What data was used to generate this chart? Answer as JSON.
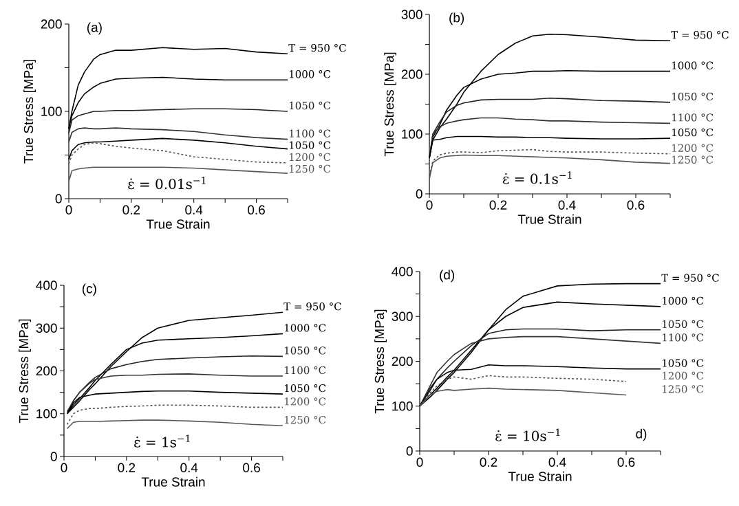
{
  "chart_data": [
    {
      "type": "line",
      "title": "(a)",
      "xlabel": "True Strain",
      "ylabel": "True Stress [MPa]",
      "x": [
        0,
        0.01,
        0.03,
        0.05,
        0.08,
        0.1,
        0.15,
        0.2,
        0.3,
        0.4,
        0.5,
        0.6,
        0.7
      ],
      "series": [
        {
          "name": "T = 950 °C",
          "color": "#000000",
          "line_style": "solid",
          "values": [
            80,
            100,
            130,
            145,
            160,
            165,
            170,
            170,
            173,
            171,
            172,
            168,
            166
          ]
        },
        {
          "name": "1000 °C",
          "color": "#000000",
          "line_style": "solid",
          "values": [
            80,
            95,
            110,
            120,
            128,
            132,
            137,
            138,
            139,
            137,
            136,
            136,
            136
          ]
        },
        {
          "name": "1050 °C",
          "color": "#222222",
          "line_style": "solid",
          "values": [
            75,
            90,
            95,
            97,
            100,
            100,
            101,
            101,
            102,
            103,
            103,
            102,
            100
          ]
        },
        {
          "name": "1100 °C",
          "color": "#333333",
          "line_style": "solid",
          "values": [
            65,
            76,
            80,
            81,
            80,
            80,
            81,
            80,
            79,
            77,
            73,
            70,
            68
          ]
        },
        {
          "name": "1050 °C",
          "color": "#000000",
          "line_style": "solid",
          "values": [
            45,
            55,
            62,
            64,
            65,
            65,
            66,
            67,
            69,
            67,
            64,
            60,
            57
          ]
        },
        {
          "name": "1200 °C",
          "color": "#555555",
          "line_style": "dashed",
          "values": [
            40,
            50,
            57,
            62,
            64,
            63,
            60,
            58,
            55,
            48,
            45,
            42,
            41
          ]
        },
        {
          "name": "1250 °C",
          "color": "#555555",
          "line_style": "solid",
          "values": [
            20,
            32,
            34,
            35,
            36,
            36,
            36,
            36,
            36,
            35,
            33,
            31,
            29
          ]
        }
      ],
      "xlim": [
        0,
        0.7
      ],
      "ylim": [
        0,
        200
      ],
      "xticks": [
        0,
        {
          "value": 0.1,
          "label": null
        },
        0.2,
        {
          "value": 0.3,
          "label": null
        },
        0.4,
        {
          "value": 0.5,
          "label": null
        },
        0.6,
        {
          "value": 0.7,
          "label": null
        }
      ],
      "yticks": [
        0,
        {
          "value": 50,
          "label": null
        },
        100,
        {
          "value": 150,
          "label": null
        },
        200
      ],
      "annotations": [
        "ε̇ = 0.01s$^{−1}$"
      ]
    },
    {
      "type": "line",
      "title": "(b)",
      "xlabel": "True Strain",
      "ylabel": "True Stress [MPa]",
      "x": [
        0,
        0.01,
        0.03,
        0.05,
        0.08,
        0.1,
        0.15,
        0.2,
        0.25,
        0.3,
        0.35,
        0.4,
        0.5,
        0.6,
        0.7
      ],
      "series": [
        {
          "name": "T = 950 °C",
          "color": "#000000",
          "line_style": "solid",
          "values": [
            60,
            90,
            110,
            125,
            150,
            170,
            205,
            233,
            252,
            264,
            267,
            266,
            262,
            257,
            256
          ]
        },
        {
          "name": "1000 °C",
          "color": "#000000",
          "line_style": "solid",
          "values": [
            60,
            95,
            115,
            140,
            165,
            178,
            192,
            200,
            202,
            205,
            205,
            206,
            205,
            205,
            205
          ]
        },
        {
          "name": "1050 °C",
          "color": "#222222",
          "line_style": "solid",
          "values": [
            60,
            100,
            120,
            137,
            148,
            152,
            157,
            158,
            158,
            158,
            160,
            159,
            156,
            155,
            153
          ]
        },
        {
          "name": "1100 °C",
          "color": "#333333",
          "line_style": "solid",
          "values": [
            60,
            100,
            112,
            118,
            122,
            124,
            127,
            127,
            125,
            124,
            122,
            122,
            120,
            119,
            118
          ]
        },
        {
          "name": "1050 °C",
          "color": "#000000",
          "line_style": "solid",
          "values": [
            60,
            90,
            91,
            94,
            96,
            96,
            96,
            95,
            95,
            94,
            94,
            93,
            92,
            92,
            93
          ]
        },
        {
          "name": "1200 °C",
          "color": "#555555",
          "line_style": "dashed",
          "values": [
            30,
            55,
            65,
            68,
            70,
            70,
            69,
            72,
            73,
            74,
            71,
            70,
            70,
            68,
            67
          ]
        },
        {
          "name": "1250 °C",
          "color": "#555555",
          "line_style": "solid",
          "values": [
            25,
            52,
            60,
            63,
            64,
            65,
            64,
            64,
            63,
            62,
            61,
            60,
            57,
            53,
            51
          ]
        }
      ],
      "xlim": [
        0,
        0.7
      ],
      "ylim": [
        0,
        300
      ],
      "xticks": [
        0,
        {
          "value": 0.1,
          "label": null
        },
        0.2,
        {
          "value": 0.3,
          "label": null
        },
        0.4,
        {
          "value": 0.5,
          "label": null
        },
        0.6,
        {
          "value": 0.7,
          "label": null
        }
      ],
      "yticks": [
        0,
        {
          "value": 50,
          "label": null
        },
        100,
        {
          "value": 150,
          "label": null
        },
        200,
        {
          "value": 250,
          "label": null
        },
        300
      ],
      "annotations": [
        "ε̇ = 0.1s$^{−1}$"
      ]
    },
    {
      "type": "line",
      "title": "(c)",
      "xlabel": "True Strain",
      "ylabel": "True Stress [MPa]",
      "x": [
        0.01,
        0.03,
        0.05,
        0.08,
        0.1,
        0.15,
        0.2,
        0.25,
        0.3,
        0.4,
        0.5,
        0.6,
        0.7
      ],
      "series": [
        {
          "name": "T = 950 °C",
          "color": "#000000",
          "line_style": "solid",
          "values": [
            100,
            115,
            130,
            155,
            170,
            210,
            245,
            278,
            300,
            318,
            324,
            330,
            337
          ]
        },
        {
          "name": "1000 °C",
          "color": "#000000",
          "line_style": "solid",
          "values": [
            100,
            120,
            135,
            160,
            178,
            215,
            250,
            265,
            272,
            275,
            278,
            282,
            287
          ]
        },
        {
          "name": "1050 °C",
          "color": "#222222",
          "line_style": "solid",
          "values": [
            100,
            130,
            150,
            172,
            185,
            205,
            215,
            222,
            227,
            230,
            233,
            235,
            234
          ]
        },
        {
          "name": "1100 °C",
          "color": "#333333",
          "line_style": "solid",
          "values": [
            105,
            130,
            150,
            170,
            180,
            188,
            190,
            190,
            192,
            193,
            190,
            188,
            188
          ]
        },
        {
          "name": "1050 °C",
          "color": "#000000",
          "line_style": "solid",
          "values": [
            100,
            125,
            138,
            143,
            146,
            148,
            150,
            152,
            153,
            153,
            150,
            148,
            146
          ]
        },
        {
          "name": "1200 °C",
          "color": "#555555",
          "line_style": "dashed",
          "values": [
            75,
            100,
            108,
            112,
            112,
            115,
            117,
            118,
            120,
            120,
            118,
            115,
            115
          ]
        },
        {
          "name": "1250 °C",
          "color": "#555555",
          "line_style": "solid",
          "values": [
            65,
            80,
            82,
            82,
            82,
            83,
            84,
            85,
            85,
            83,
            80,
            75,
            72
          ]
        }
      ],
      "xlim": [
        0,
        0.7
      ],
      "ylim": [
        0,
        400
      ],
      "xticks": [
        0,
        {
          "value": 0.1,
          "label": null
        },
        0.2,
        {
          "value": 0.3,
          "label": null
        },
        0.4,
        {
          "value": 0.5,
          "label": null
        },
        0.6,
        {
          "value": 0.7,
          "label": null
        }
      ],
      "yticks": [
        0,
        {
          "value": 50,
          "label": null
        },
        100,
        {
          "value": 150,
          "label": null
        },
        200,
        {
          "value": 250,
          "label": null
        },
        300,
        {
          "value": 350,
          "label": null
        },
        400
      ],
      "annotations": [
        "ε̇ = 1s$^{−1}$"
      ]
    },
    {
      "type": "line",
      "title": "(d)",
      "xlabel": "True Strain",
      "ylabel": "True Stress [MPa]",
      "x": [
        0,
        0.03,
        0.05,
        0.08,
        0.1,
        0.15,
        0.2,
        0.25,
        0.3,
        0.4,
        0.5,
        0.6,
        0.7
      ],
      "series": [
        {
          "name": "T = 950 °C",
          "color": "#000000",
          "line_style": "solid",
          "values": [
            100,
            120,
            135,
            160,
            175,
            220,
            270,
            315,
            345,
            368,
            372,
            373,
            373
          ]
        },
        {
          "name": "1000 °C",
          "color": "#000000",
          "line_style": "solid",
          "values": [
            100,
            125,
            140,
            165,
            180,
            225,
            270,
            300,
            320,
            332,
            328,
            325,
            322
          ]
        },
        {
          "name": "1050 °C",
          "color": "#222222",
          "line_style": "solid",
          "values": [
            100,
            140,
            160,
            185,
            200,
            235,
            262,
            270,
            272,
            272,
            268,
            270,
            270
          ]
        },
        {
          "name": "1100 °C",
          "color": "#333333",
          "line_style": "solid",
          "values": [
            100,
            145,
            175,
            200,
            215,
            240,
            250,
            253,
            255,
            255,
            250,
            245,
            240
          ]
        },
        {
          "name": "1050 °C",
          "color": "#000000",
          "line_style": "solid",
          "values": [
            100,
            135,
            160,
            175,
            180,
            182,
            192,
            190,
            190,
            188,
            185,
            183,
            183
          ]
        },
        {
          "name": "1200 °C",
          "color": "#555555",
          "line_style": "dashed",
          "values": [
            100,
            130,
            145,
            160,
            165,
            160,
            168,
            165,
            165,
            162,
            160,
            155,
            null
          ]
        },
        {
          "name": "1250 °C",
          "color": "#555555",
          "line_style": "solid",
          "values": [
            100,
            125,
            133,
            137,
            135,
            138,
            140,
            138,
            137,
            135,
            130,
            125,
            null
          ]
        }
      ],
      "xlim": [
        0,
        0.7
      ],
      "ylim": [
        0,
        400
      ],
      "xticks": [
        0,
        {
          "value": 0.1,
          "label": null
        },
        0.2,
        {
          "value": 0.3,
          "label": null
        },
        0.4,
        {
          "value": 0.5,
          "label": null
        },
        0.6,
        {
          "value": 0.7,
          "label": null
        }
      ],
      "yticks": [
        0,
        {
          "value": 50,
          "label": null
        },
        100,
        {
          "value": 150,
          "label": null
        },
        200,
        {
          "value": 250,
          "label": null
        },
        300,
        {
          "value": 350,
          "label": null
        },
        400
      ],
      "annotations": [
        "ε̇ = 10s$^{−1}$",
        "d)"
      ]
    }
  ]
}
